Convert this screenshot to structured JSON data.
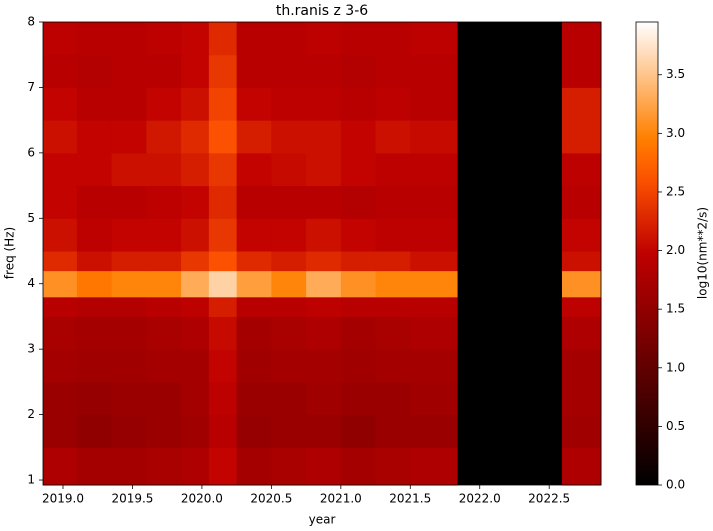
{
  "chart_data": {
    "type": "heatmap",
    "title": "th.ranis z 3-6",
    "x_label": "year",
    "y_label": "freq (Hz)",
    "colorbar_label": "log10(nm**2/s)",
    "colormap": "gist_heat",
    "x_edges": [
      2018.856,
      2019.1,
      2019.35,
      2019.6,
      2019.85,
      2020.05,
      2020.25,
      2020.5,
      2020.75,
      2021.0,
      2021.25,
      2021.5,
      2021.837,
      2022.592,
      2022.873
    ],
    "y_edges": [
      0.924,
      1.5,
      2,
      2.5,
      3,
      3.5,
      3.8,
      4.2,
      4.5,
      5,
      5.5,
      6,
      6.5,
      7,
      7.5,
      8
    ],
    "z": [
      [
        1.8,
        1.7,
        1.7,
        1.75,
        1.8,
        2.0,
        1.7,
        1.75,
        1.8,
        1.7,
        1.75,
        1.8,
        null,
        1.8
      ],
      [
        1.6,
        1.5,
        1.55,
        1.6,
        1.65,
        1.9,
        1.55,
        1.6,
        1.6,
        1.5,
        1.6,
        1.6,
        null,
        1.65
      ],
      [
        1.6,
        1.55,
        1.6,
        1.6,
        1.7,
        1.95,
        1.6,
        1.6,
        1.65,
        1.6,
        1.6,
        1.65,
        null,
        1.7
      ],
      [
        1.7,
        1.65,
        1.65,
        1.7,
        1.7,
        2.0,
        1.65,
        1.7,
        1.7,
        1.65,
        1.7,
        1.7,
        null,
        1.7
      ],
      [
        1.75,
        1.7,
        1.7,
        1.75,
        1.8,
        2.05,
        1.7,
        1.75,
        1.8,
        1.7,
        1.75,
        1.8,
        null,
        1.8
      ],
      [
        1.9,
        1.85,
        1.85,
        1.9,
        1.95,
        2.2,
        1.9,
        1.9,
        1.95,
        1.9,
        1.9,
        1.9,
        null,
        1.95
      ],
      [
        3.1,
        2.9,
        3.0,
        3.0,
        3.3,
        3.6,
        3.2,
        3.0,
        3.3,
        3.1,
        3.0,
        3.0,
        null,
        3.1
      ],
      [
        2.3,
        2.1,
        2.2,
        2.2,
        2.4,
        2.6,
        2.3,
        2.2,
        2.3,
        2.2,
        2.2,
        2.1,
        null,
        2.1
      ],
      [
        2.1,
        1.95,
        2.0,
        2.0,
        2.1,
        2.4,
        2.0,
        2.0,
        2.1,
        2.0,
        1.95,
        1.95,
        null,
        2.0
      ],
      [
        2.0,
        1.9,
        1.9,
        1.95,
        2.0,
        2.3,
        1.9,
        1.9,
        1.9,
        1.85,
        1.9,
        1.9,
        null,
        1.9
      ],
      [
        2.0,
        2.0,
        2.1,
        2.1,
        2.2,
        2.4,
        2.0,
        2.05,
        2.1,
        2.0,
        1.95,
        1.95,
        null,
        1.95
      ],
      [
        2.1,
        2.0,
        2.0,
        2.15,
        2.3,
        2.6,
        2.2,
        2.1,
        2.1,
        2.0,
        2.1,
        2.05,
        null,
        2.2
      ],
      [
        2.0,
        1.9,
        1.9,
        2.0,
        2.1,
        2.5,
        2.0,
        1.95,
        1.95,
        1.9,
        1.95,
        1.9,
        null,
        2.2
      ],
      [
        1.9,
        1.85,
        1.9,
        1.9,
        2.0,
        2.4,
        1.9,
        1.9,
        1.9,
        1.85,
        1.9,
        1.9,
        null,
        1.9
      ],
      [
        1.95,
        1.9,
        1.9,
        1.95,
        2.0,
        2.3,
        1.9,
        1.9,
        1.95,
        1.9,
        1.9,
        1.95,
        null,
        1.9
      ]
    ],
    "xlim": [
      2018.856,
      2022.873
    ],
    "ylim": [
      0.924,
      8
    ],
    "clim": [
      0,
      3.95
    ],
    "xticks": [
      {
        "value": 2019.0,
        "label": "2019.0"
      },
      {
        "value": 2019.5,
        "label": "2019.5"
      },
      {
        "value": 2020.0,
        "label": "2020.0"
      },
      {
        "value": 2020.5,
        "label": "2020.5"
      },
      {
        "value": 2021.0,
        "label": "2021.0"
      },
      {
        "value": 2021.5,
        "label": "2021.5"
      },
      {
        "value": 2022.0,
        "label": "2022.0"
      },
      {
        "value": 2022.5,
        "label": "2022.5"
      }
    ],
    "yticks": [
      1,
      2,
      3,
      4,
      5,
      6,
      7,
      8
    ],
    "cticks": [
      {
        "value": 0,
        "label": "0.0"
      },
      {
        "value": 0.5,
        "label": "0.5"
      },
      {
        "value": 1,
        "label": "1.0"
      },
      {
        "value": 1.5,
        "label": "1.5"
      },
      {
        "value": 2,
        "label": "2.0"
      },
      {
        "value": 2.5,
        "label": "2.5"
      },
      {
        "value": 3,
        "label": "3.0"
      },
      {
        "value": 3.5,
        "label": "3.5"
      }
    ]
  }
}
